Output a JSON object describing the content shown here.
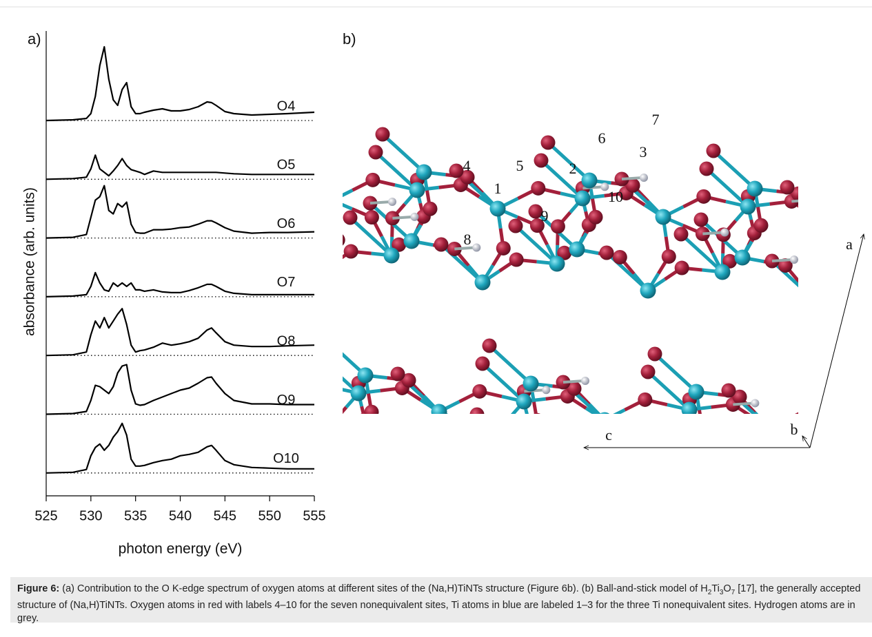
{
  "panel_a": {
    "label": "a)"
  },
  "panel_b": {
    "label": "b)",
    "atom_labels": [
      "1",
      "2",
      "3",
      "4",
      "5",
      "6",
      "7",
      "8",
      "9",
      "10"
    ],
    "axes": [
      "a",
      "b",
      "c"
    ]
  },
  "chart_data": {
    "type": "line",
    "xlabel": "photon energy (eV)",
    "ylabel": "absorbance (arb. units)",
    "xlim": [
      525,
      555
    ],
    "xticks": [
      525,
      530,
      535,
      540,
      545,
      550,
      555
    ],
    "x": [
      525,
      528,
      529.5,
      530,
      530.5,
      531,
      531.5,
      532,
      532.5,
      533,
      533.5,
      534,
      534.5,
      535,
      535.5,
      536,
      537,
      538,
      539,
      540,
      541,
      542,
      543,
      543.5,
      544,
      545,
      546,
      548,
      550,
      552,
      555
    ],
    "series": [
      {
        "name": "O4",
        "color": "#000000",
        "values": [
          0,
          0.01,
          0.03,
          0.1,
          0.35,
          0.8,
          1.07,
          0.6,
          0.3,
          0.22,
          0.45,
          0.55,
          0.2,
          0.1,
          0.1,
          0.12,
          0.15,
          0.17,
          0.14,
          0.14,
          0.16,
          0.2,
          0.27,
          0.26,
          0.22,
          0.13,
          0.1,
          0.08,
          0.09,
          0.1,
          0.12
        ]
      },
      {
        "name": "O5",
        "color": "#000000",
        "values": [
          0,
          0.01,
          0.03,
          0.15,
          0.35,
          0.15,
          0.1,
          0.05,
          0.12,
          0.2,
          0.3,
          0.2,
          0.14,
          0.12,
          0.1,
          0.07,
          0.12,
          0.1,
          0.1,
          0.1,
          0.1,
          0.1,
          0.1,
          0.1,
          0.1,
          0.09,
          0.08,
          0.07,
          0.07,
          0.07,
          0.07
        ]
      },
      {
        "name": "O6",
        "color": "#000000",
        "values": [
          0,
          0.01,
          0.05,
          0.3,
          0.55,
          0.6,
          0.76,
          0.4,
          0.35,
          0.5,
          0.45,
          0.52,
          0.2,
          0.08,
          0.07,
          0.07,
          0.12,
          0.12,
          0.13,
          0.15,
          0.16,
          0.2,
          0.25,
          0.25,
          0.22,
          0.15,
          0.1,
          0.07,
          0.08,
          0.08,
          0.09
        ]
      },
      {
        "name": "O7",
        "color": "#000000",
        "values": [
          0,
          0.01,
          0.03,
          0.15,
          0.35,
          0.2,
          0.1,
          0.08,
          0.2,
          0.15,
          0.2,
          0.15,
          0.2,
          0.1,
          0.1,
          0.08,
          0.1,
          0.07,
          0.06,
          0.06,
          0.09,
          0.13,
          0.18,
          0.18,
          0.15,
          0.08,
          0.05,
          0.03,
          0.03,
          0.03,
          0.03
        ]
      },
      {
        "name": "O8",
        "color": "#000000",
        "values": [
          0,
          0.01,
          0.05,
          0.3,
          0.5,
          0.4,
          0.55,
          0.4,
          0.5,
          0.6,
          0.68,
          0.45,
          0.15,
          0.05,
          0.07,
          0.08,
          0.12,
          0.18,
          0.15,
          0.17,
          0.2,
          0.25,
          0.37,
          0.4,
          0.33,
          0.2,
          0.15,
          0.13,
          0.13,
          0.14,
          0.15
        ]
      },
      {
        "name": "O9",
        "color": "#000000",
        "values": [
          0,
          0.01,
          0.04,
          0.2,
          0.42,
          0.4,
          0.35,
          0.3,
          0.4,
          0.6,
          0.7,
          0.72,
          0.35,
          0.15,
          0.13,
          0.14,
          0.2,
          0.25,
          0.3,
          0.35,
          0.38,
          0.45,
          0.53,
          0.54,
          0.45,
          0.3,
          0.2,
          0.15,
          0.15,
          0.14,
          0.14
        ]
      },
      {
        "name": "O10",
        "color": "#000000",
        "values": [
          0,
          0.01,
          0.05,
          0.25,
          0.37,
          0.42,
          0.33,
          0.4,
          0.52,
          0.6,
          0.72,
          0.55,
          0.2,
          0.1,
          0.1,
          0.11,
          0.15,
          0.18,
          0.2,
          0.25,
          0.27,
          0.3,
          0.38,
          0.4,
          0.33,
          0.18,
          0.12,
          0.08,
          0.07,
          0.06,
          0.06
        ]
      }
    ]
  },
  "caption": {
    "label": "Figure 6:",
    "parts": [
      {
        "text": " (a) Contribution to the O K-edge spectrum of oxygen atoms at different sites of the (Na,H)TiNTs structure (Figure 6b). (b) Ball-and-stick model of H"
      },
      {
        "sub": "2"
      },
      {
        "text": "Ti"
      },
      {
        "sub": "3"
      },
      {
        "text": "O"
      },
      {
        "sub": "7"
      },
      {
        "text": " [17], the generally accepted structure of (Na,H)TiNTs. Oxygen atoms in red with labels 4–10 for the seven nonequivalent sites, Ti atoms in blue are labeled 1–3 for the three Ti nonequivalent sites. Hydrogen atoms are in grey."
      }
    ]
  }
}
